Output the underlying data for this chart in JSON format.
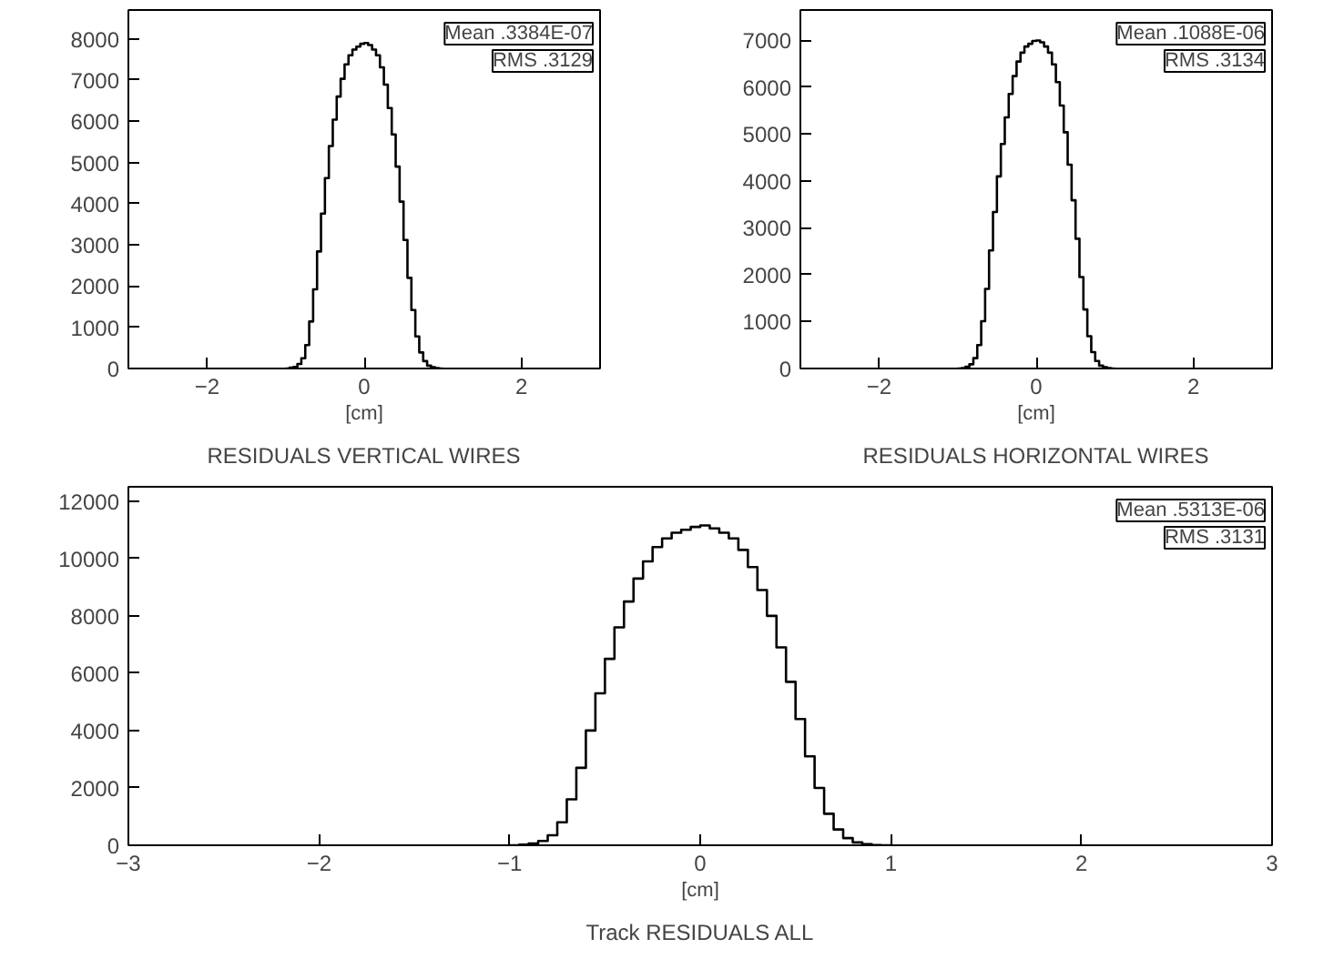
{
  "chart_data": [
    {
      "type": "histogram",
      "title": "RESIDUALS VERTICAL WIRES",
      "xlabel": "[cm]",
      "color": "#000000",
      "bins": [
        -1.0,
        -0.95,
        -0.9,
        -0.85,
        -0.8,
        -0.75,
        -0.7,
        -0.65,
        -0.6,
        -0.55,
        -0.5,
        -0.45,
        -0.4,
        -0.35,
        -0.3,
        -0.25,
        -0.2,
        -0.15,
        -0.1,
        -0.05,
        0.0,
        0.05,
        0.1,
        0.15,
        0.2,
        0.25,
        0.3,
        0.35,
        0.4,
        0.45,
        0.5,
        0.55,
        0.6,
        0.65,
        0.7,
        0.75,
        0.8,
        0.85,
        0.9,
        0.95,
        1.0
      ],
      "values": [
        0,
        20,
        40,
        110,
        250,
        570,
        1140,
        1920,
        2840,
        3760,
        4620,
        5400,
        6040,
        6600,
        7030,
        7380,
        7600,
        7740,
        7810,
        7880,
        7900,
        7850,
        7740,
        7600,
        7310,
        6890,
        6320,
        5680,
        4900,
        4050,
        3120,
        2200,
        1420,
        780,
        390,
        180,
        70,
        30,
        10,
        0
      ],
      "xlim": [
        -3,
        3
      ],
      "xticks": [
        -2,
        0,
        2
      ],
      "ylim": [
        0,
        8700
      ],
      "yticks": [
        0,
        1000,
        2000,
        3000,
        4000,
        5000,
        6000,
        7000,
        8000
      ],
      "annotations": [
        "Mean .3384E-07",
        "RMS .3129"
      ],
      "grid": false
    },
    {
      "type": "histogram",
      "title": "RESIDUALS HORIZONTAL WIRES",
      "xlabel": "[cm]",
      "color": "#000000",
      "bins": [
        -1.0,
        -0.95,
        -0.9,
        -0.85,
        -0.8,
        -0.75,
        -0.7,
        -0.65,
        -0.6,
        -0.55,
        -0.5,
        -0.45,
        -0.4,
        -0.35,
        -0.3,
        -0.25,
        -0.2,
        -0.15,
        -0.1,
        -0.05,
        0.0,
        0.05,
        0.1,
        0.15,
        0.2,
        0.25,
        0.3,
        0.35,
        0.4,
        0.45,
        0.5,
        0.55,
        0.6,
        0.65,
        0.7,
        0.75,
        0.8,
        0.85,
        0.9,
        0.95,
        1.0
      ],
      "values": [
        0,
        10,
        40,
        90,
        220,
        500,
        1010,
        1700,
        2520,
        3340,
        4100,
        4790,
        5360,
        5860,
        6240,
        6550,
        6740,
        6870,
        6930,
        6990,
        7000,
        6960,
        6870,
        6740,
        6490,
        6110,
        5610,
        5040,
        4350,
        3590,
        2770,
        1950,
        1260,
        690,
        350,
        160,
        60,
        30,
        10,
        0
      ],
      "xlim": [
        -3,
        3
      ],
      "xticks": [
        -2,
        0,
        2
      ],
      "ylim": [
        0,
        7650
      ],
      "yticks": [
        0,
        1000,
        2000,
        3000,
        4000,
        5000,
        6000,
        7000
      ],
      "annotations": [
        "Mean .1088E-06",
        "RMS .3134"
      ],
      "grid": false
    },
    {
      "type": "histogram",
      "title": "Track RESIDUALS ALL",
      "xlabel": "[cm]",
      "color": "#000000",
      "bins": [
        -1.0,
        -0.95,
        -0.9,
        -0.85,
        -0.8,
        -0.75,
        -0.7,
        -0.65,
        -0.6,
        -0.55,
        -0.5,
        -0.45,
        -0.4,
        -0.35,
        -0.3,
        -0.25,
        -0.2,
        -0.15,
        -0.1,
        -0.05,
        0.0,
        0.05,
        0.1,
        0.15,
        0.2,
        0.25,
        0.3,
        0.35,
        0.4,
        0.45,
        0.5,
        0.55,
        0.6,
        0.65,
        0.7,
        0.75,
        0.8,
        0.85,
        0.9,
        0.95,
        1.0
      ],
      "values": [
        0,
        20,
        60,
        150,
        350,
        800,
        1600,
        2700,
        4000,
        5300,
        6500,
        7600,
        8500,
        9300,
        9900,
        10400,
        10700,
        10900,
        11000,
        11100,
        11150,
        11050,
        10900,
        10700,
        10300,
        9700,
        8900,
        8000,
        6900,
        5700,
        4400,
        3100,
        2000,
        1100,
        550,
        250,
        100,
        40,
        10,
        0
      ],
      "xlim": [
        -3,
        3
      ],
      "xticks": [
        -3,
        -2,
        -1,
        0,
        1,
        2,
        3
      ],
      "ylim": [
        0,
        12500
      ],
      "yticks": [
        0,
        2000,
        4000,
        6000,
        8000,
        10000,
        12000
      ],
      "annotations": [
        "Mean .5313E-06",
        "RMS .3131"
      ],
      "grid": false
    }
  ]
}
